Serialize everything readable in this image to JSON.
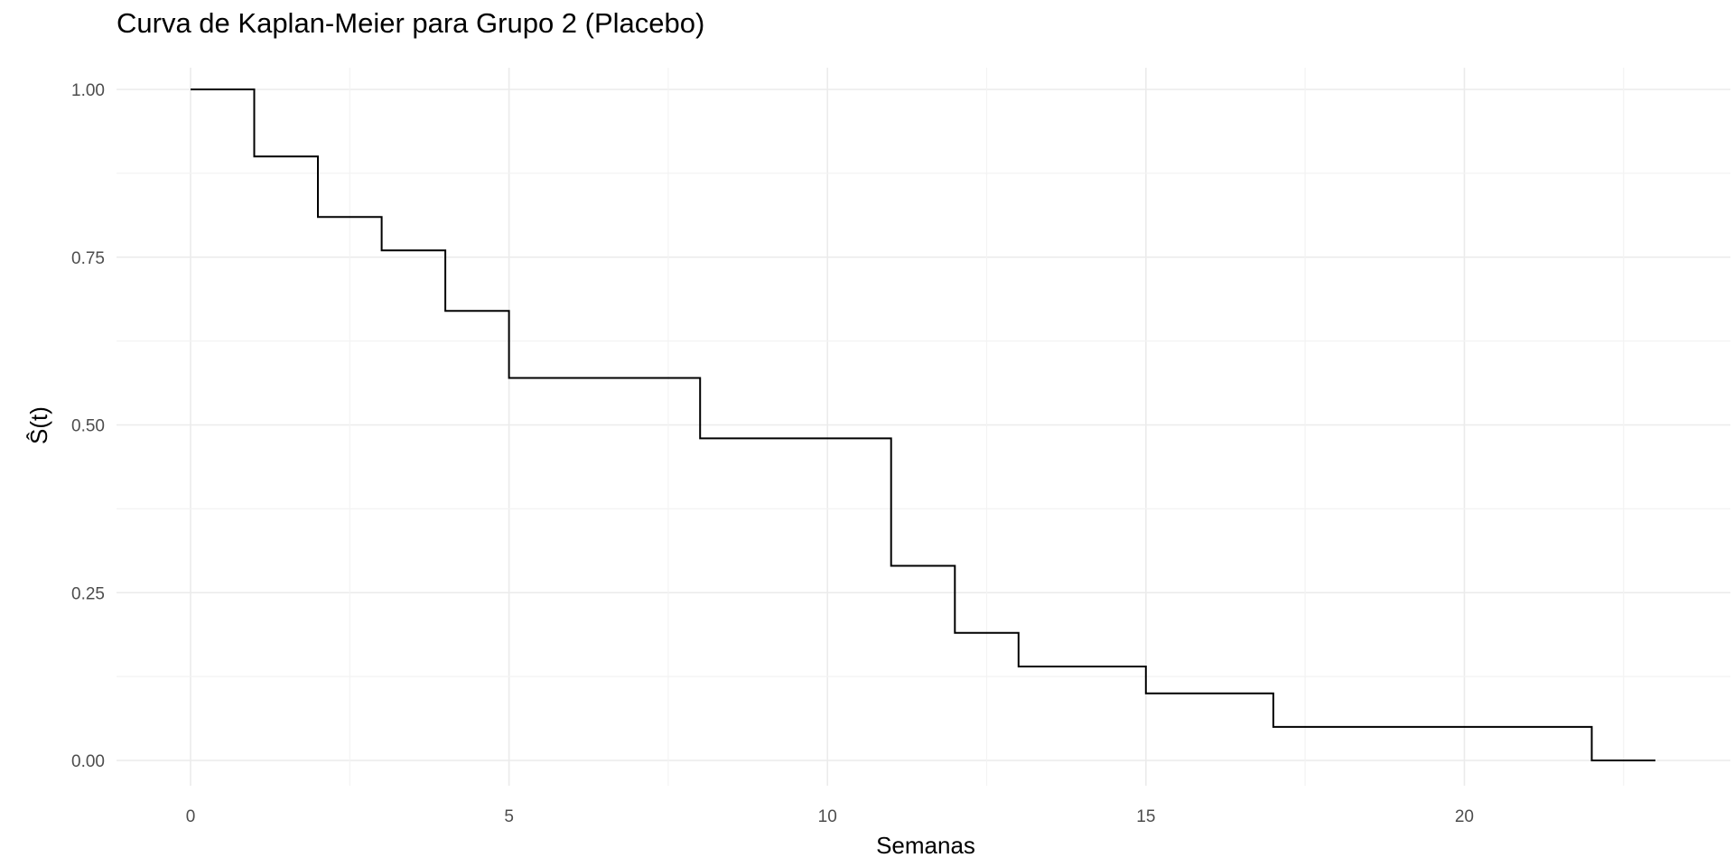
{
  "chart_data": {
    "type": "line",
    "step": true,
    "title": "Curva de Kaplan-Meier para Grupo 2 (Placebo)",
    "xlabel": "Semanas",
    "ylabel": "Ŝ(t)",
    "xlim": [
      0,
      23
    ],
    "ylim": [
      0,
      1
    ],
    "x_ticks": [
      0,
      5,
      10,
      15,
      20
    ],
    "x_tick_labels": [
      "0",
      "5",
      "10",
      "15",
      "20"
    ],
    "y_ticks": [
      0,
      0.25,
      0.5,
      0.75,
      1
    ],
    "y_tick_labels": [
      "0.00",
      "0.25",
      "0.50",
      "0.75",
      "1.00"
    ],
    "grid": true,
    "legend": "none",
    "series": [
      {
        "color": "#000000",
        "x": [
          0,
          1,
          2,
          3,
          4,
          5,
          8,
          11,
          12,
          13,
          15,
          17,
          22,
          23
        ],
        "y": [
          1.0,
          0.9,
          0.81,
          0.76,
          0.67,
          0.57,
          0.48,
          0.29,
          0.19,
          0.14,
          0.1,
          0.05,
          0.0,
          0.0
        ]
      }
    ]
  }
}
